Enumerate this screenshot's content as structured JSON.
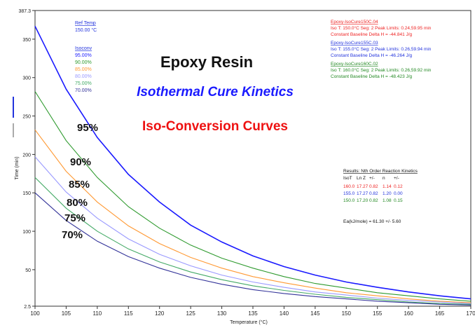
{
  "chart_data": {
    "type": "line",
    "title": "Epoxy Resin",
    "subtitle_1": "Isothermal Cure Kinetics",
    "subtitle_2": "Iso-Conversion Curves",
    "xlabel": "Temperature (°C)",
    "ylabel": "Time (min)",
    "xlim": [
      100,
      170
    ],
    "ylim": [
      2.5,
      387.3
    ],
    "x_ticks": [
      "100",
      "105",
      "110",
      "115",
      "120",
      "125",
      "130",
      "135",
      "140",
      "145",
      "150",
      "155",
      "160",
      "165",
      "170"
    ],
    "y_ticks": [
      {
        "value": 2.5,
        "label": "2.5"
      },
      {
        "value": 50,
        "label": "50"
      },
      {
        "value": 100,
        "label": "100"
      },
      {
        "value": 150,
        "label": "150"
      },
      {
        "value": 200,
        "label": "200"
      },
      {
        "value": 250,
        "label": "250"
      },
      {
        "value": 300,
        "label": "300"
      },
      {
        "value": 350,
        "label": "350"
      },
      {
        "value": 387.3,
        "label": "387.3"
      }
    ],
    "x": [
      100,
      105,
      110,
      115,
      120,
      125,
      130,
      135,
      140,
      145,
      150,
      155,
      160,
      165,
      170
    ],
    "series": [
      {
        "name": "95.00%",
        "color": "#1a1aff",
        "values": [
          367,
          285,
          222,
          174,
          138,
          108,
          86,
          68,
          54,
          43,
          34,
          27,
          21,
          16,
          12
        ]
      },
      {
        "name": "90.00%",
        "color": "#2e9a2e",
        "values": [
          282,
          218,
          170,
          132,
          104,
          82,
          65,
          52,
          41,
          32,
          26,
          20,
          16,
          12,
          9
        ]
      },
      {
        "name": "85.00%",
        "color": "#ff9933",
        "values": [
          232,
          178,
          138,
          107,
          84,
          66,
          52,
          41,
          33,
          26,
          20,
          16,
          12,
          9,
          7
        ]
      },
      {
        "name": "80.00%",
        "color": "#9999ff",
        "values": [
          197,
          151,
          117,
          90,
          70,
          55,
          43,
          34,
          27,
          21,
          17,
          13,
          10,
          8,
          6
        ]
      },
      {
        "name": "75.00%",
        "color": "#44aa66",
        "values": [
          170,
          130,
          100,
          77,
          60,
          47,
          37,
          29,
          23,
          18,
          14,
          11,
          8,
          6,
          5
        ]
      },
      {
        "name": "70.00%",
        "color": "#333399",
        "values": [
          150,
          114,
          87,
          67,
          52,
          40,
          31,
          24,
          19,
          15,
          12,
          9,
          7,
          5,
          4
        ]
      }
    ],
    "curve_labels": [
      "95%",
      "90%",
      "85%",
      "80%",
      "75%",
      "70%"
    ],
    "legend": {
      "title_label": "Ref Temp",
      "ref_value": "150.00 °C",
      "iso_label": "Isoconv",
      "items": [
        "95.00%",
        "90.00%",
        "85.00%",
        "80.00%",
        "75.00%",
        "70.00%"
      ],
      "placement": "top-left"
    },
    "annotations_top_right": [
      {
        "header": "Epoxy-IsoCure150C.04",
        "line1": "Iso T: 150.0°C   Seg: 2   Peak Limits: 0.24,59.95 min",
        "line2": "Constant Baseline      Delta H = -44.841 J/g",
        "color": "#ee2222"
      },
      {
        "header": "Epoxy-IsoCure155C.03",
        "line1": "Iso T: 155.0°C   Seg: 2   Peak Limits: 0.26,59.94 min",
        "line2": "Constant Baseline      Delta H = -46.264 J/g",
        "color": "#2233dd"
      },
      {
        "header": "Epoxy-IsoCure160C.02",
        "line1": "Iso T: 160.0°C   Seg: 2   Peak Limits: 0.26,59.92 min",
        "line2": "Constant Baseline      Delta H = -48.423 J/g",
        "color": "#228822"
      }
    ],
    "results": {
      "title": "Results: Nth Order Reaction Kinetics",
      "headers": [
        "IsoT",
        "Ln Z",
        "+/-",
        "n",
        "+/-"
      ],
      "rows": [
        {
          "cells": [
            "160.0",
            "17.27",
            "0.82",
            "1.14",
            "0.12"
          ],
          "color": "#ee2222"
        },
        {
          "cells": [
            "155.0",
            "17.27",
            "0.82",
            "1.20",
            "0.00"
          ],
          "color": "#2233dd"
        },
        {
          "cells": [
            "150.0",
            "17.20",
            "0.82",
            "1.08",
            "0.15"
          ],
          "color": "#228822"
        }
      ],
      "ea_line": "Ea(kJ/mole) = 61.30 +/- 5.60"
    }
  }
}
